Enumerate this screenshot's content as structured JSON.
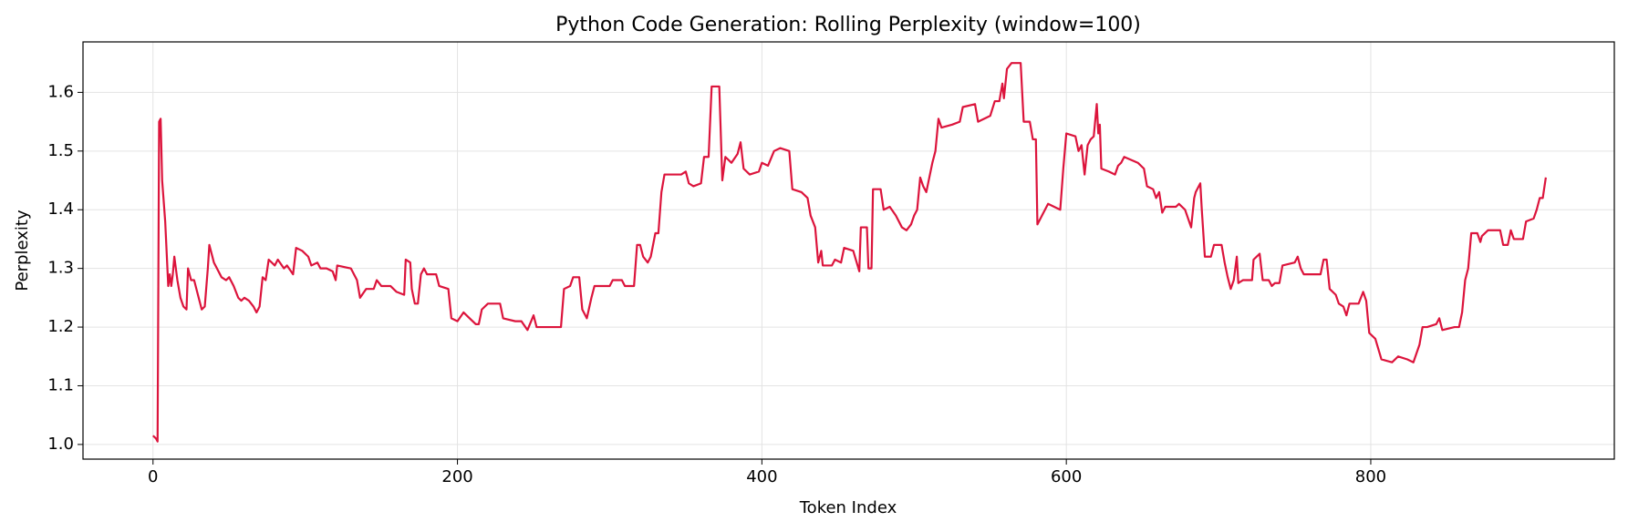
{
  "chart_data": {
    "type": "line",
    "title": "Python Code Generation: Rolling Perplexity (window=100)",
    "x_label": "Token Index",
    "y_label": "Perplexity",
    "color": "#dc143c",
    "grid": true,
    "xlim": [
      -46,
      960
    ],
    "ylim": [
      0.975,
      1.686
    ],
    "xticks": [
      0,
      200,
      400,
      600,
      800
    ],
    "yticks": [
      {
        "value": 1,
        "label": "1.0"
      },
      1.1,
      1.2,
      1.3,
      1.4,
      1.5,
      1.6
    ],
    "x": [
      0,
      2,
      3,
      4,
      5,
      6,
      8,
      10,
      11,
      12,
      13,
      14,
      16,
      18,
      20,
      22,
      23,
      25,
      27,
      30,
      32,
      34,
      36,
      37,
      40,
      42,
      45,
      48,
      50,
      53,
      56,
      58,
      60,
      63,
      66,
      68,
      70,
      72,
      74,
      76,
      80,
      82,
      86,
      88,
      92,
      94,
      98,
      102,
      104,
      108,
      110,
      114,
      118,
      120,
      121,
      130,
      134,
      136,
      140,
      145,
      147,
      150,
      156,
      160,
      165,
      166,
      169,
      170,
      172,
      174,
      176,
      178,
      180,
      186,
      188,
      194,
      196,
      200,
      204,
      208,
      212,
      214,
      216,
      220,
      228,
      230,
      238,
      242,
      246,
      250,
      252,
      260,
      268,
      270,
      274,
      276,
      280,
      282,
      285,
      288,
      290,
      300,
      302,
      308,
      310,
      316,
      318,
      320,
      322,
      325,
      327,
      330,
      332,
      334,
      336,
      347,
      350,
      352,
      355,
      360,
      362,
      365,
      367,
      372,
      374,
      376,
      380,
      384,
      386,
      388,
      392,
      398,
      400,
      404,
      408,
      412,
      418,
      420,
      426,
      430,
      432,
      435,
      437,
      439,
      440,
      446,
      448,
      452,
      454,
      460,
      464,
      465,
      469,
      470,
      472,
      473,
      478,
      480,
      484,
      488,
      492,
      495,
      498,
      500,
      502,
      504,
      506,
      508,
      512,
      514,
      516,
      518,
      525,
      530,
      532,
      540,
      542,
      546,
      550,
      553,
      556,
      558,
      559,
      561,
      564,
      570,
      572,
      576,
      578,
      580,
      581,
      584,
      588,
      592,
      596,
      598,
      600,
      606,
      608,
      610,
      612,
      614,
      616,
      618,
      620,
      621,
      622,
      623,
      628,
      632,
      634,
      636,
      638,
      647,
      651,
      653,
      657,
      659,
      661,
      663,
      665,
      672,
      674,
      678,
      682,
      684,
      685,
      688,
      689,
      691,
      695,
      697,
      702,
      704,
      706,
      708,
      710,
      712,
      713,
      716,
      722,
      723,
      727,
      729,
      733,
      735,
      737,
      740,
      742,
      750,
      752,
      754,
      756,
      761,
      767,
      769,
      771,
      773,
      777,
      779,
      782,
      784,
      786,
      792,
      795,
      797,
      799,
      803,
      807,
      814,
      818,
      824,
      828,
      832,
      834,
      837,
      843,
      845,
      847,
      855,
      858,
      860,
      862,
      864,
      866,
      870,
      872,
      873,
      877,
      885,
      887,
      890,
      892,
      894,
      900,
      902,
      907,
      909,
      911,
      913,
      915
    ],
    "values": [
      1.015,
      1.01,
      1.005,
      1.55,
      1.555,
      1.45,
      1.38,
      1.27,
      1.29,
      1.27,
      1.29,
      1.32,
      1.28,
      1.25,
      1.235,
      1.23,
      1.3,
      1.28,
      1.28,
      1.25,
      1.23,
      1.235,
      1.3,
      1.34,
      1.31,
      1.3,
      1.285,
      1.28,
      1.285,
      1.27,
      1.25,
      1.245,
      1.25,
      1.245,
      1.235,
      1.225,
      1.235,
      1.285,
      1.28,
      1.315,
      1.305,
      1.315,
      1.3,
      1.305,
      1.29,
      1.335,
      1.33,
      1.32,
      1.305,
      1.31,
      1.3,
      1.3,
      1.295,
      1.28,
      1.305,
      1.3,
      1.28,
      1.25,
      1.265,
      1.265,
      1.28,
      1.27,
      1.27,
      1.26,
      1.255,
      1.315,
      1.31,
      1.265,
      1.24,
      1.24,
      1.29,
      1.3,
      1.29,
      1.29,
      1.27,
      1.265,
      1.215,
      1.21,
      1.225,
      1.215,
      1.205,
      1.205,
      1.23,
      1.24,
      1.24,
      1.215,
      1.21,
      1.21,
      1.195,
      1.22,
      1.2,
      1.2,
      1.2,
      1.265,
      1.27,
      1.285,
      1.285,
      1.23,
      1.215,
      1.25,
      1.27,
      1.27,
      1.28,
      1.28,
      1.27,
      1.27,
      1.34,
      1.34,
      1.32,
      1.31,
      1.32,
      1.36,
      1.36,
      1.43,
      1.46,
      1.46,
      1.465,
      1.445,
      1.44,
      1.445,
      1.49,
      1.49,
      1.61,
      1.61,
      1.45,
      1.49,
      1.48,
      1.495,
      1.515,
      1.47,
      1.46,
      1.465,
      1.48,
      1.475,
      1.5,
      1.505,
      1.5,
      1.435,
      1.43,
      1.42,
      1.39,
      1.37,
      1.31,
      1.33,
      1.305,
      1.305,
      1.315,
      1.31,
      1.335,
      1.33,
      1.295,
      1.37,
      1.37,
      1.3,
      1.3,
      1.435,
      1.435,
      1.4,
      1.405,
      1.39,
      1.37,
      1.365,
      1.375,
      1.39,
      1.4,
      1.455,
      1.44,
      1.43,
      1.48,
      1.5,
      1.555,
      1.54,
      1.545,
      1.55,
      1.575,
      1.58,
      1.55,
      1.555,
      1.56,
      1.585,
      1.585,
      1.615,
      1.59,
      1.64,
      1.65,
      1.65,
      1.55,
      1.55,
      1.52,
      1.52,
      1.375,
      1.39,
      1.41,
      1.405,
      1.4,
      1.47,
      1.53,
      1.525,
      1.5,
      1.51,
      1.46,
      1.51,
      1.52,
      1.525,
      1.58,
      1.53,
      1.545,
      1.47,
      1.465,
      1.46,
      1.475,
      1.48,
      1.49,
      1.48,
      1.47,
      1.44,
      1.435,
      1.42,
      1.43,
      1.395,
      1.405,
      1.405,
      1.41,
      1.4,
      1.37,
      1.42,
      1.43,
      1.445,
      1.4,
      1.32,
      1.32,
      1.34,
      1.34,
      1.31,
      1.285,
      1.265,
      1.28,
      1.32,
      1.275,
      1.28,
      1.28,
      1.315,
      1.325,
      1.28,
      1.28,
      1.27,
      1.275,
      1.275,
      1.305,
      1.31,
      1.32,
      1.3,
      1.29,
      1.29,
      1.29,
      1.315,
      1.315,
      1.265,
      1.255,
      1.24,
      1.235,
      1.22,
      1.24,
      1.24,
      1.26,
      1.245,
      1.19,
      1.18,
      1.145,
      1.14,
      1.15,
      1.145,
      1.14,
      1.17,
      1.2,
      1.2,
      1.205,
      1.215,
      1.195,
      1.2,
      1.2,
      1.225,
      1.28,
      1.3,
      1.36,
      1.36,
      1.345,
      1.355,
      1.365,
      1.365,
      1.34,
      1.34,
      1.365,
      1.35,
      1.35,
      1.38,
      1.385,
      1.4,
      1.42,
      1.42,
      1.455
    ]
  }
}
